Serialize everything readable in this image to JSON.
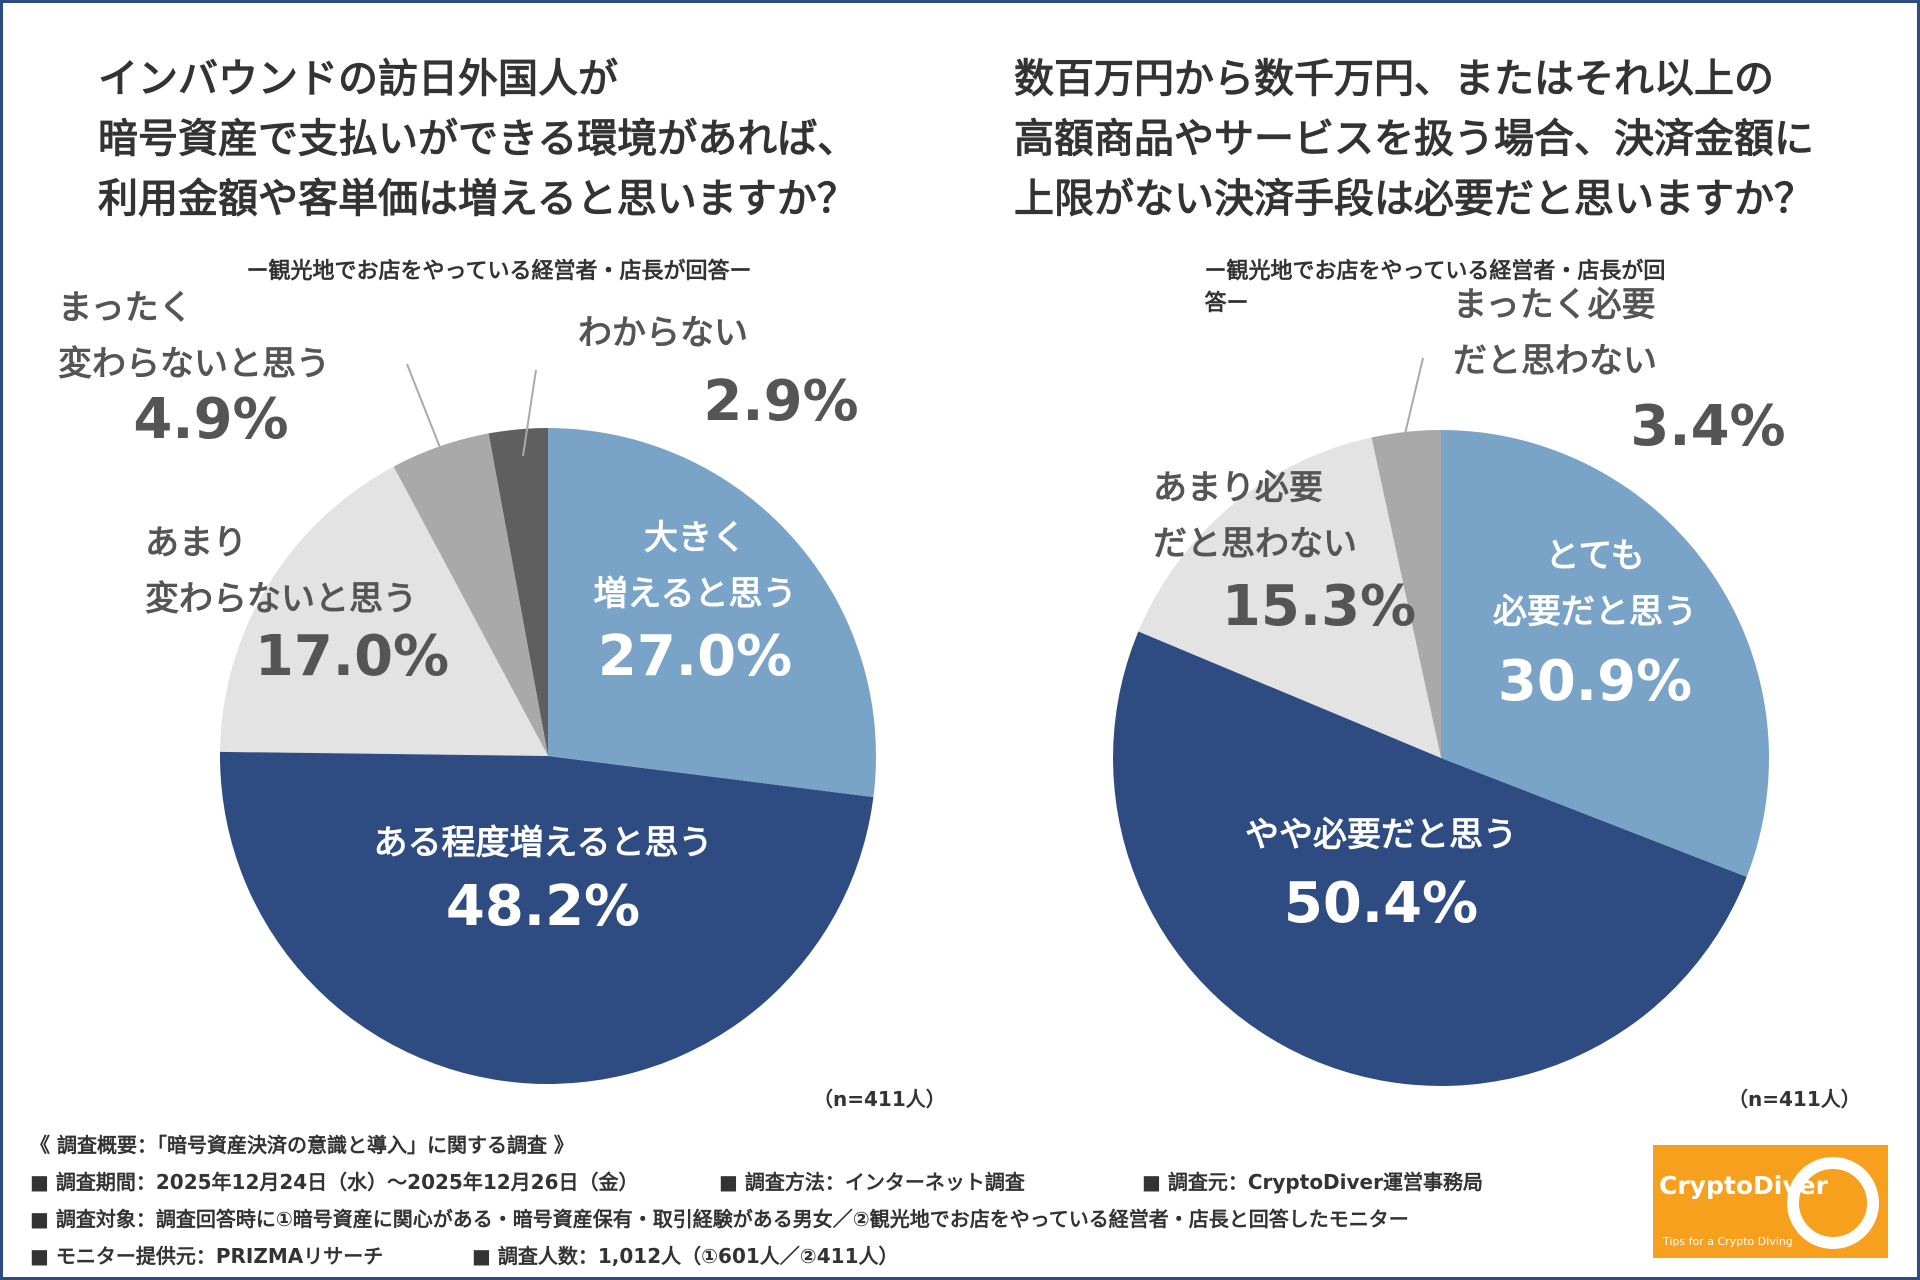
{
  "chart_data": [
    {
      "type": "pie",
      "title": "インバウンドの訪日外国人が\n暗号資産で支払いができる環境があれば、\n利用金額や客単価は増えると思いますか？",
      "subtitle": "ー観光地でお店をやっている経営者・店長が回答ー",
      "categories": [
        "大きく\n増えると思う",
        "ある程度増えると思う",
        "あまり\n変わらないと思う",
        "まったく\n変わらないと思う",
        "わからない"
      ],
      "values": [
        27.0,
        48.2,
        17.0,
        4.9,
        2.9
      ],
      "value_labels": [
        "27.0%",
        "48.2%",
        "17.0%",
        "4.9%",
        "2.9%"
      ],
      "colors": [
        "#7aa3c8",
        "#2e4c82",
        "#e3e3e3",
        "#a9a9a9",
        "#5f5f5f"
      ],
      "note": "（n=411人）"
    },
    {
      "type": "pie",
      "title": "数百万円から数千万円、またはそれ以上の\n高額商品やサービスを扱う場合、決済金額に\n上限がない決済手段は必要だと思いますか？",
      "subtitle": "ー観光地でお店をやっている経営者・店長が回答ー",
      "categories": [
        "とても\n必要だと思う",
        "やや必要だと思う",
        "あまり必要\nだと思わない",
        "まったく必要\nだと思わない"
      ],
      "values": [
        30.9,
        50.4,
        15.3,
        3.4
      ],
      "value_labels": [
        "30.9%",
        "50.4%",
        "15.3%",
        "3.4%"
      ],
      "colors": [
        "#7aa3c8",
        "#2e4c82",
        "#e3e3e3",
        "#a9a9a9"
      ],
      "note": "（n=411人）"
    }
  ],
  "footer": {
    "heading": "《 調査概要：「暗号資産決済の意識と導入」に関する調査 》",
    "items": [
      "■ 調査期間：2025年12月24日（水）～2025年12月26日（金）",
      "■ 調査方法：インターネット調査",
      "■ 調査元：CryptoDiver運営事務局",
      "■ 調査対象：調査回答時に①暗号資産に関心がある・暗号資産保有・取引経験がある男女／②観光地でお店をやっている経営者・店長と回答したモニター",
      "■ モニター提供元：PRIZMAリサーチ",
      "■ 調査人数：1,012人（①601人／②411人）"
    ]
  },
  "logo": {
    "name": "CryptoDiver",
    "tagline": "Tips for a Crypto Diving"
  }
}
